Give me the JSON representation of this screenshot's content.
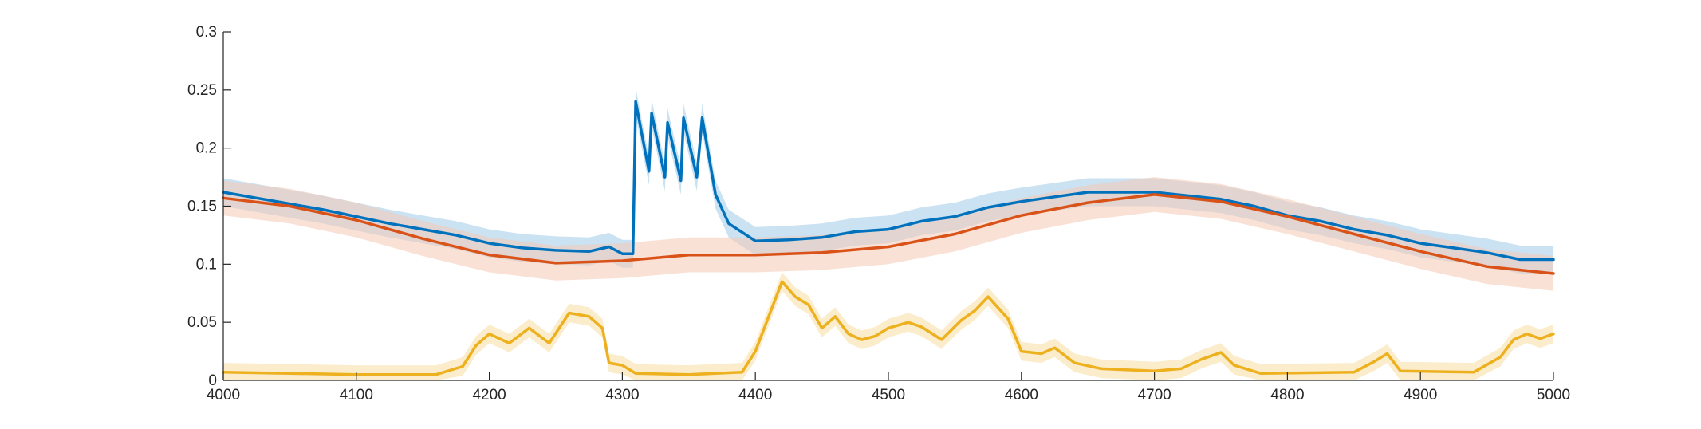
{
  "chart_data": {
    "type": "line",
    "title": "",
    "xlabel": "",
    "ylabel": "",
    "xlim": [
      4000,
      5000
    ],
    "ylim": [
      0,
      0.3
    ],
    "grid": false,
    "x_ticks": [
      {
        "value": 4000,
        "label": "4000"
      },
      {
        "value": 4100,
        "label": "4100"
      },
      {
        "value": 4200,
        "label": "4200"
      },
      {
        "value": 4300,
        "label": "4300"
      },
      {
        "value": 4400,
        "label": "4400"
      },
      {
        "value": 4500,
        "label": "4500"
      },
      {
        "value": 4600,
        "label": "4600"
      },
      {
        "value": 4700,
        "label": "4700"
      },
      {
        "value": 4800,
        "label": "4800"
      },
      {
        "value": 4900,
        "label": "4900"
      },
      {
        "value": 5000,
        "label": "5000"
      }
    ],
    "y_ticks": [
      {
        "value": 0,
        "label": "0"
      },
      {
        "value": 0.05,
        "label": "0.05"
      },
      {
        "value": 0.1,
        "label": "0.1"
      },
      {
        "value": 0.15,
        "label": "0.15"
      },
      {
        "value": 0.2,
        "label": "0.2"
      },
      {
        "value": 0.25,
        "label": "0.25"
      },
      {
        "value": 0.3,
        "label": "0.3"
      }
    ],
    "series": [
      {
        "color": "#0072BD",
        "band_color": "#9ecae8",
        "points": [
          [
            4000,
            0.162
          ],
          [
            4025,
            0.157
          ],
          [
            4050,
            0.152
          ],
          [
            4075,
            0.147
          ],
          [
            4100,
            0.141
          ],
          [
            4125,
            0.135
          ],
          [
            4150,
            0.13
          ],
          [
            4175,
            0.125
          ],
          [
            4200,
            0.118
          ],
          [
            4225,
            0.114
          ],
          [
            4250,
            0.112
          ],
          [
            4275,
            0.111
          ],
          [
            4290,
            0.115
          ],
          [
            4300,
            0.109
          ],
          [
            4308,
            0.109
          ],
          [
            4310,
            0.24
          ],
          [
            4320,
            0.18
          ],
          [
            4322,
            0.23
          ],
          [
            4332,
            0.175
          ],
          [
            4334,
            0.222
          ],
          [
            4344,
            0.172
          ],
          [
            4346,
            0.226
          ],
          [
            4356,
            0.175
          ],
          [
            4360,
            0.226
          ],
          [
            4370,
            0.16
          ],
          [
            4380,
            0.135
          ],
          [
            4400,
            0.12
          ],
          [
            4425,
            0.121
          ],
          [
            4450,
            0.123
          ],
          [
            4475,
            0.128
          ],
          [
            4500,
            0.13
          ],
          [
            4525,
            0.137
          ],
          [
            4550,
            0.141
          ],
          [
            4575,
            0.149
          ],
          [
            4600,
            0.154
          ],
          [
            4625,
            0.158
          ],
          [
            4650,
            0.162
          ],
          [
            4675,
            0.162
          ],
          [
            4700,
            0.162
          ],
          [
            4725,
            0.159
          ],
          [
            4750,
            0.156
          ],
          [
            4775,
            0.15
          ],
          [
            4800,
            0.142
          ],
          [
            4825,
            0.137
          ],
          [
            4850,
            0.13
          ],
          [
            4875,
            0.125
          ],
          [
            4900,
            0.118
          ],
          [
            4925,
            0.114
          ],
          [
            4950,
            0.11
          ],
          [
            4975,
            0.104
          ],
          [
            5000,
            0.104
          ]
        ],
        "band_halfwidth": 0.012
      },
      {
        "color": "#D95319",
        "band_color": "#f6c8b4",
        "points": [
          [
            4000,
            0.157
          ],
          [
            4050,
            0.15
          ],
          [
            4100,
            0.138
          ],
          [
            4150,
            0.122
          ],
          [
            4200,
            0.108
          ],
          [
            4250,
            0.101
          ],
          [
            4300,
            0.103
          ],
          [
            4350,
            0.108
          ],
          [
            4400,
            0.108
          ],
          [
            4450,
            0.11
          ],
          [
            4500,
            0.115
          ],
          [
            4550,
            0.126
          ],
          [
            4600,
            0.142
          ],
          [
            4650,
            0.153
          ],
          [
            4700,
            0.16
          ],
          [
            4750,
            0.154
          ],
          [
            4800,
            0.141
          ],
          [
            4850,
            0.126
          ],
          [
            4900,
            0.111
          ],
          [
            4950,
            0.098
          ],
          [
            5000,
            0.092
          ]
        ],
        "band_halfwidth": 0.015
      },
      {
        "color": "#EDB120",
        "band_color": "#f7dea0",
        "points": [
          [
            4000,
            0.007
          ],
          [
            4100,
            0.005
          ],
          [
            4160,
            0.005
          ],
          [
            4180,
            0.012
          ],
          [
            4190,
            0.03
          ],
          [
            4200,
            0.04
          ],
          [
            4215,
            0.032
          ],
          [
            4230,
            0.045
          ],
          [
            4245,
            0.032
          ],
          [
            4260,
            0.058
          ],
          [
            4275,
            0.055
          ],
          [
            4285,
            0.045
          ],
          [
            4290,
            0.015
          ],
          [
            4300,
            0.013
          ],
          [
            4310,
            0.006
          ],
          [
            4350,
            0.005
          ],
          [
            4390,
            0.007
          ],
          [
            4400,
            0.025
          ],
          [
            4410,
            0.055
          ],
          [
            4420,
            0.085
          ],
          [
            4430,
            0.072
          ],
          [
            4440,
            0.065
          ],
          [
            4450,
            0.045
          ],
          [
            4460,
            0.055
          ],
          [
            4470,
            0.04
          ],
          [
            4480,
            0.035
          ],
          [
            4490,
            0.038
          ],
          [
            4500,
            0.045
          ],
          [
            4515,
            0.05
          ],
          [
            4525,
            0.046
          ],
          [
            4540,
            0.035
          ],
          [
            4555,
            0.052
          ],
          [
            4565,
            0.06
          ],
          [
            4575,
            0.072
          ],
          [
            4590,
            0.053
          ],
          [
            4600,
            0.025
          ],
          [
            4615,
            0.023
          ],
          [
            4625,
            0.028
          ],
          [
            4640,
            0.015
          ],
          [
            4660,
            0.01
          ],
          [
            4700,
            0.008
          ],
          [
            4720,
            0.01
          ],
          [
            4735,
            0.018
          ],
          [
            4750,
            0.024
          ],
          [
            4760,
            0.013
          ],
          [
            4780,
            0.006
          ],
          [
            4850,
            0.007
          ],
          [
            4865,
            0.016
          ],
          [
            4875,
            0.023
          ],
          [
            4885,
            0.008
          ],
          [
            4940,
            0.007
          ],
          [
            4960,
            0.02
          ],
          [
            4970,
            0.035
          ],
          [
            4980,
            0.04
          ],
          [
            4990,
            0.036
          ],
          [
            5000,
            0.04
          ]
        ],
        "band_halfwidth": 0.008
      }
    ]
  }
}
